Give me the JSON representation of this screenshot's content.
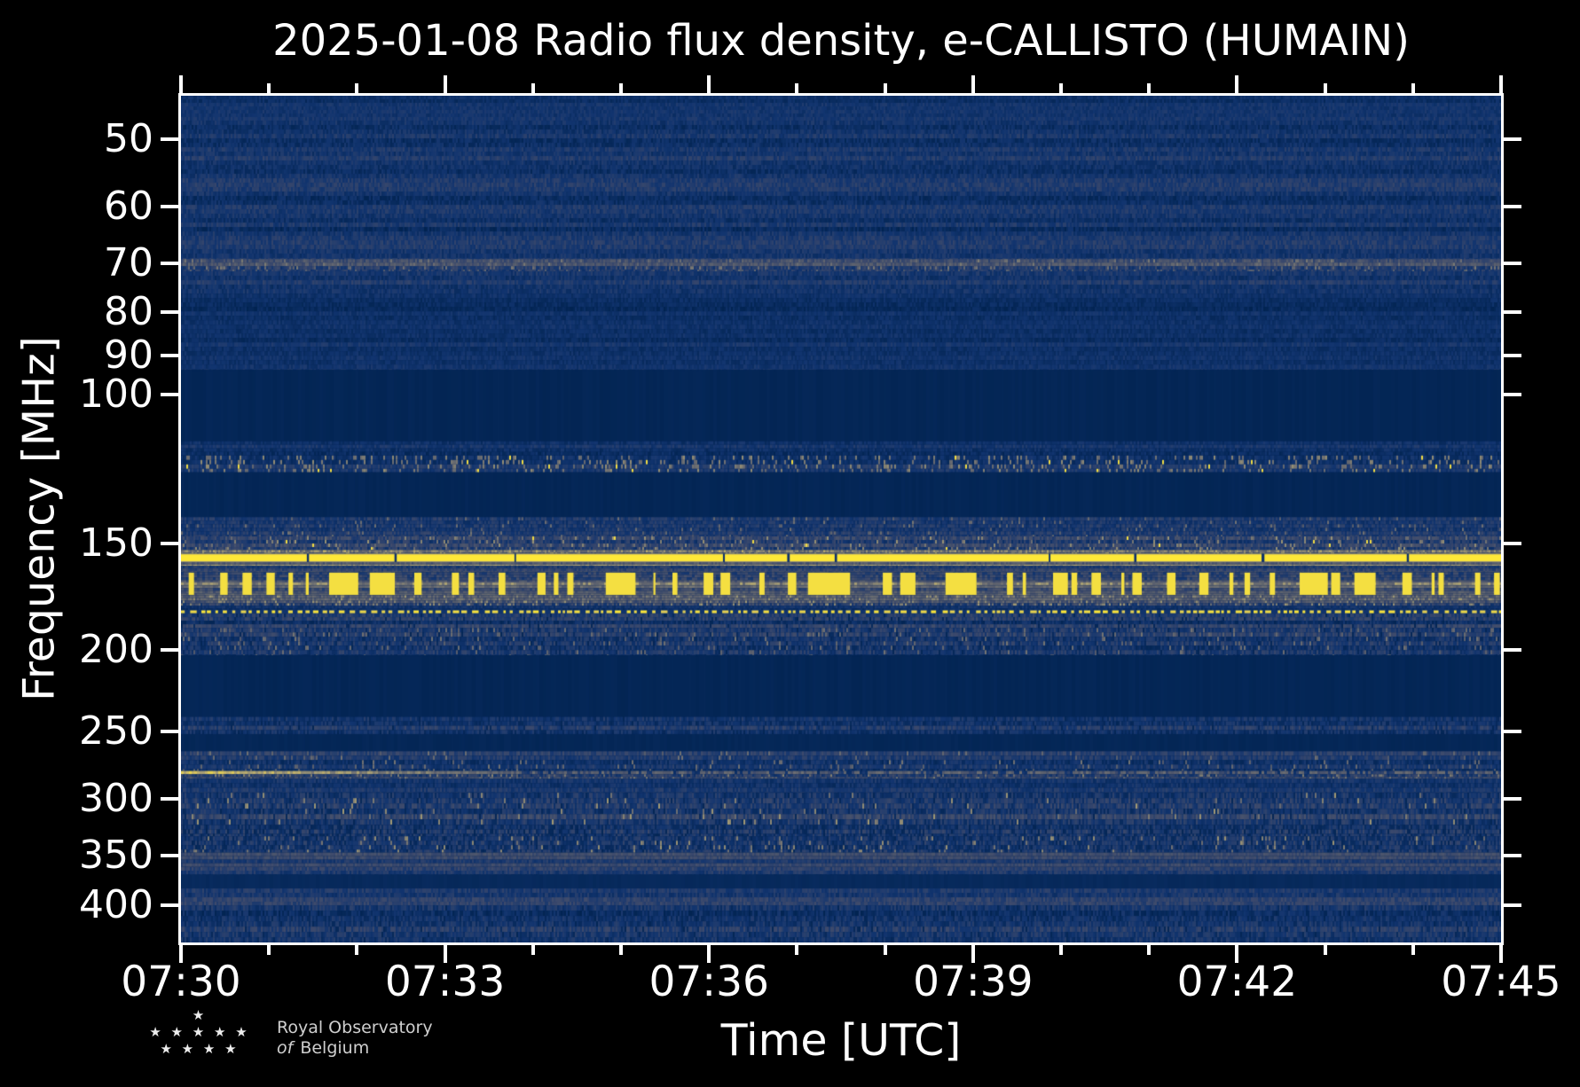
{
  "figure": {
    "background": "#000000",
    "text_color": "#ffffff"
  },
  "chart_data": {
    "type": "heatmap",
    "subtype": "radio-spectrogram",
    "title": "2025-01-08 Radio flux density, e-CALLISTO (HUMAIN)",
    "date": "2025-01-08",
    "instrument": "e-CALLISTO (HUMAIN)",
    "xlabel": "Time [UTC]",
    "ylabel": "Frequency [MHz]",
    "x_axis": {
      "start_min": 0,
      "end_min": 15,
      "major_every_min": 3,
      "minor_every_min": 1,
      "major_tick_labels": [
        "07:30",
        "07:33",
        "07:36",
        "07:39",
        "07:42",
        "07:45"
      ]
    },
    "y_axis": {
      "scale": "log",
      "inverted": true,
      "tick_values": [
        50,
        60,
        70,
        80,
        90,
        100,
        150,
        200,
        250,
        300,
        350,
        400
      ],
      "fmin": 44.4,
      "fmax": 443
    },
    "colormap": {
      "name": "cividis",
      "stops": [
        "#00224e",
        "#123570",
        "#3b496c",
        "#575d6d",
        "#707173",
        "#a69d75",
        "#d3c064",
        "#fee838"
      ]
    },
    "noise_seed": 77,
    "bands": [
      {
        "f0": 44.4,
        "f1": 47.5,
        "kind": "noise",
        "level": 0.13,
        "amp": 0.1,
        "rh": 4
      },
      {
        "f0": 47.5,
        "f1": 76.0,
        "kind": "noise",
        "level": 0.14,
        "amp": 0.13,
        "rh": 5
      },
      {
        "f0": 69.2,
        "f1": 71.5,
        "kind": "noise",
        "level": 0.27,
        "amp": 0.2,
        "rh": 4,
        "sp": 0.1,
        "spv": 0.52
      },
      {
        "f0": 76.0,
        "f1": 93.5,
        "kind": "noise",
        "level": 0.11,
        "amp": 0.1,
        "rh": 5
      },
      {
        "f0": 93.5,
        "f1": 113.5,
        "kind": "solid",
        "level": 0.035
      },
      {
        "f0": 113.5,
        "f1": 118.0,
        "kind": "noise",
        "level": 0.13,
        "amp": 0.12,
        "rh": 4
      },
      {
        "f0": 118.0,
        "f1": 123.5,
        "kind": "noise",
        "level": 0.14,
        "amp": 0.13,
        "rh": 5,
        "sp": 0.16,
        "spv": 0.58,
        "yp": 0.01
      },
      {
        "f0": 123.5,
        "f1": 139.5,
        "kind": "solid",
        "level": 0.035
      },
      {
        "f0": 139.5,
        "f1": 147.0,
        "kind": "noise",
        "level": 0.17,
        "amp": 0.16,
        "rh": 4,
        "sp": 0.04,
        "spv": 0.5
      },
      {
        "f0": 147.0,
        "f1": 152.5,
        "kind": "noise",
        "level": 0.24,
        "amp": 0.2,
        "rh": 4,
        "sp": 0.08,
        "spv": 0.6,
        "yp": 0.004
      },
      {
        "f0": 152.5,
        "f1": 154.0,
        "kind": "noise",
        "level": 0.5,
        "amp": 0.25,
        "rh": 3,
        "sp": 0.2,
        "spv": 0.7
      },
      {
        "f0": 154.0,
        "f1": 157.6,
        "kind": "yline"
      },
      {
        "f0": 157.6,
        "f1": 159.2,
        "kind": "noise",
        "level": 0.55,
        "amp": 0.2,
        "rh": 3
      },
      {
        "f0": 159.2,
        "f1": 162.0,
        "kind": "noise",
        "level": 0.3,
        "amp": 0.15,
        "rh": 3
      },
      {
        "f0": 162.0,
        "f1": 172.5,
        "kind": "bursts"
      },
      {
        "f0": 172.5,
        "f1": 177.5,
        "kind": "noise",
        "level": 0.33,
        "amp": 0.25,
        "rh": 3,
        "sp": 0.15,
        "spv": 0.62
      },
      {
        "f0": 177.5,
        "f1": 179.5,
        "kind": "noise",
        "level": 0.15,
        "amp": 0.12,
        "rh": 3
      },
      {
        "f0": 179.5,
        "f1": 181.3,
        "kind": "dotted"
      },
      {
        "f0": 181.3,
        "f1": 188.5,
        "kind": "noise",
        "level": 0.18,
        "amp": 0.16,
        "rh": 4,
        "dark": 0.05
      },
      {
        "f0": 188.5,
        "f1": 203.0,
        "kind": "noise",
        "level": 0.2,
        "amp": 0.18,
        "rh": 5,
        "sp": 0.06,
        "spv": 0.5,
        "dark": 0.06
      },
      {
        "f0": 203.0,
        "f1": 240.0,
        "kind": "solid",
        "level": 0.035
      },
      {
        "f0": 240.0,
        "f1": 251.5,
        "kind": "noise",
        "level": 0.16,
        "amp": 0.16,
        "rh": 5,
        "dark": 0.05
      },
      {
        "f0": 251.5,
        "f1": 263.5,
        "kind": "solid",
        "level": 0.04
      },
      {
        "f0": 263.5,
        "f1": 278.0,
        "kind": "noise",
        "level": 0.17,
        "amp": 0.15,
        "rh": 5,
        "sp": 0.05,
        "spv": 0.5
      },
      {
        "f0": 278.0,
        "f1": 280.5,
        "kind": "fadeline",
        "hi": 0.85,
        "lo": 0.45,
        "fade": 380
      },
      {
        "f0": 280.5,
        "f1": 284.0,
        "kind": "noise",
        "level": 0.3,
        "amp": 0.2,
        "rh": 3,
        "sp": 0.1,
        "spv": 0.55
      },
      {
        "f0": 284.0,
        "f1": 295.0,
        "kind": "noise",
        "level": 0.16,
        "amp": 0.14,
        "rh": 5
      },
      {
        "f0": 295.0,
        "f1": 322.0,
        "kind": "noise",
        "level": 0.2,
        "amp": 0.2,
        "rh": 6,
        "sp": 0.025,
        "spv": 0.62,
        "dark": 0.04
      },
      {
        "f0": 322.0,
        "f1": 332.0,
        "kind": "noise",
        "level": 0.17,
        "amp": 0.18,
        "rh": 5,
        "dark": 0.22
      },
      {
        "f0": 332.0,
        "f1": 347.0,
        "kind": "noise",
        "level": 0.2,
        "amp": 0.2,
        "rh": 5,
        "sp": 0.05,
        "spv": 0.6,
        "dark": 0.08
      },
      {
        "f0": 347.0,
        "f1": 361.0,
        "kind": "noise",
        "level": 0.26,
        "amp": 0.14,
        "rh": 4
      },
      {
        "f0": 361.0,
        "f1": 368.5,
        "kind": "noise",
        "level": 0.17,
        "amp": 0.15,
        "rh": 4
      },
      {
        "f0": 368.5,
        "f1": 382.5,
        "kind": "solid",
        "level": 0.06
      },
      {
        "f0": 382.5,
        "f1": 400.5,
        "kind": "noise",
        "level": 0.18,
        "amp": 0.14,
        "rh": 5
      },
      {
        "f0": 400.5,
        "f1": 443.0,
        "kind": "noise",
        "level": 0.16,
        "amp": 0.16,
        "rh": 6,
        "dark": 0.07
      }
    ]
  },
  "logo": {
    "star_rows": [
      "★",
      "★ ★ ★ ★ ★",
      "★ ★ ★ ★"
    ],
    "line1": "Royal Observatory",
    "line2_italic": "of",
    "line2_rest": "Belgium"
  }
}
